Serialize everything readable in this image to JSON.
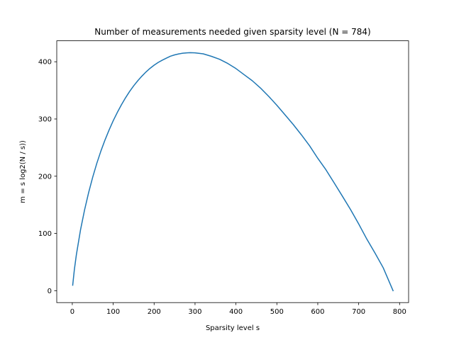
{
  "chart_data": {
    "type": "line",
    "title": "Number of measurements needed given sparsity level (N = 784)",
    "xlabel": "Sparsity level s",
    "ylabel": "m = s log2(N / s))",
    "xlim": [
      -38,
      822
    ],
    "ylim": [
      -20.8,
      436.6
    ],
    "xticks": [
      0,
      100,
      200,
      300,
      400,
      500,
      600,
      700,
      800
    ],
    "yticks": [
      0,
      100,
      200,
      300,
      400
    ],
    "grid": false,
    "line_color": "#1f77b4",
    "series": [
      {
        "x": [
          1,
          5,
          10,
          20,
          30,
          40,
          50,
          60,
          70,
          80,
          90,
          100,
          110,
          120,
          130,
          140,
          150,
          160,
          170,
          180,
          190,
          200,
          210,
          220,
          230,
          240,
          250,
          260,
          270,
          280,
          288,
          300,
          320,
          340,
          360,
          380,
          400,
          420,
          440,
          460,
          480,
          500,
          520,
          540,
          560,
          580,
          600,
          620,
          640,
          660,
          680,
          700,
          720,
          740,
          760,
          784
        ],
        "values": [
          9.6,
          36.5,
          63.0,
          105.9,
          141.1,
          171.7,
          198.6,
          222.7,
          244.2,
          263.4,
          280.9,
          296.9,
          311.4,
          324.7,
          336.9,
          348.0,
          357.9,
          366.8,
          374.8,
          382.1,
          388.5,
          394.0,
          398.8,
          402.8,
          406.3,
          409.7,
          412.0,
          413.7,
          414.9,
          415.6,
          415.8,
          415.6,
          413.8,
          409.5,
          404.3,
          397.0,
          388.1,
          377.4,
          366.8,
          354.1,
          339.6,
          324.0,
          307.3,
          290.4,
          272.3,
          253.2,
          231.3,
          211.2,
          188.4,
          165.3,
          141.9,
          116.6,
          90.0,
          65.6,
          40.0,
          0.0
        ]
      }
    ]
  }
}
